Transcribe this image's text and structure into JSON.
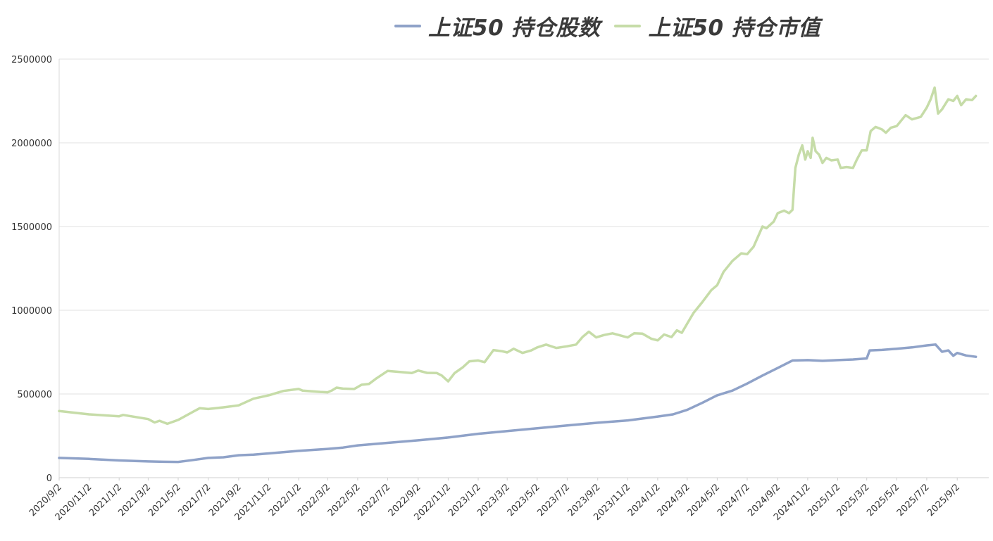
{
  "chart_data": {
    "type": "line",
    "title": "",
    "xlabel": "",
    "ylabel": "",
    "ylim": [
      0,
      2500000
    ],
    "yticks": [
      0,
      500000,
      1000000,
      1500000,
      2000000,
      2500000
    ],
    "ytick_labels": [
      "0",
      "500000",
      "1000000",
      "1500000",
      "2000000",
      "2500000"
    ],
    "xtick_labels": [
      "2020/9/2",
      "2020/11/2",
      "2021/1/2",
      "2021/3/2",
      "2021/5/2",
      "2021/7/2",
      "2021/9/2",
      "2021/11/2",
      "2022/1/2",
      "2022/3/2",
      "2022/5/2",
      "2022/7/2",
      "2022/9/2",
      "2022/11/2",
      "2023/1/2",
      "2023/3/2",
      "2023/5/2",
      "2023/7/2",
      "2023/9/2",
      "2023/11/2",
      "2024/1/2",
      "2024/3/2",
      "2024/5/2",
      "2024/7/2",
      "2024/9/2",
      "2024/11/2",
      "2025/1/2",
      "2025/3/2",
      "2025/5/2",
      "2025/7/2",
      "2025/9/2"
    ],
    "grid": true,
    "legend_position": "top",
    "series": [
      {
        "name": "上证50 持仓股数",
        "color": "#8fa2c8",
        "points": [
          [
            "2020/9/2",
            118000
          ],
          [
            "2020/11/2",
            112000
          ],
          [
            "2021/1/2",
            103000
          ],
          [
            "2021/3/2",
            97000
          ],
          [
            "2021/4/2",
            95000
          ],
          [
            "2021/5/2",
            94000
          ],
          [
            "2021/6/2",
            106000
          ],
          [
            "2021/7/2",
            118000
          ],
          [
            "2021/8/2",
            122000
          ],
          [
            "2021/9/2",
            134000
          ],
          [
            "2021/10/2",
            138000
          ],
          [
            "2021/11/2",
            145000
          ],
          [
            "2022/1/2",
            160000
          ],
          [
            "2022/3/2",
            172000
          ],
          [
            "2022/4/2",
            180000
          ],
          [
            "2022/5/2",
            193000
          ],
          [
            "2022/7/2",
            208000
          ],
          [
            "2022/9/2",
            223000
          ],
          [
            "2022/11/2",
            240000
          ],
          [
            "2023/1/2",
            262000
          ],
          [
            "2023/3/2",
            278000
          ],
          [
            "2023/5/2",
            295000
          ],
          [
            "2023/7/2",
            312000
          ],
          [
            "2023/9/2",
            328000
          ],
          [
            "2023/11/2",
            342000
          ],
          [
            "2024/1/2",
            365000
          ],
          [
            "2024/2/2",
            378000
          ],
          [
            "2024/3/2",
            405000
          ],
          [
            "2024/4/2",
            448000
          ],
          [
            "2024/5/2",
            492000
          ],
          [
            "2024/6/2",
            520000
          ],
          [
            "2024/7/2",
            562000
          ],
          [
            "2024/8/2",
            610000
          ],
          [
            "2024/9/2",
            655000
          ],
          [
            "2024/10/2",
            700000
          ],
          [
            "2024/11/2",
            702000
          ],
          [
            "2024/12/2",
            698000
          ],
          [
            "2025/1/2",
            702000
          ],
          [
            "2025/2/2",
            706000
          ],
          [
            "2025/3/2",
            712000
          ],
          [
            "2025/3/8",
            760000
          ],
          [
            "2025/4/2",
            763000
          ],
          [
            "2025/5/2",
            770000
          ],
          [
            "2025/6/2",
            778000
          ],
          [
            "2025/7/2",
            790000
          ],
          [
            "2025/7/20",
            795000
          ],
          [
            "2025/8/2",
            752000
          ],
          [
            "2025/8/15",
            760000
          ],
          [
            "2025/8/25",
            728000
          ],
          [
            "2025/9/2",
            745000
          ],
          [
            "2025/9/20",
            730000
          ],
          [
            "2025/10/10",
            722000
          ]
        ]
      },
      {
        "name": "上证50 持仓市值",
        "color": "#c6dca8",
        "points": [
          [
            "2020/9/2",
            398000
          ],
          [
            "2020/11/2",
            378000
          ],
          [
            "2021/1/2",
            367000
          ],
          [
            "2021/1/10",
            375000
          ],
          [
            "2021/3/2",
            350000
          ],
          [
            "2021/3/15",
            330000
          ],
          [
            "2021/3/25",
            340000
          ],
          [
            "2021/4/10",
            322000
          ],
          [
            "2021/5/2",
            345000
          ],
          [
            "2021/6/2",
            395000
          ],
          [
            "2021/6/15",
            415000
          ],
          [
            "2021/7/2",
            410000
          ],
          [
            "2021/8/2",
            420000
          ],
          [
            "2021/9/2",
            432000
          ],
          [
            "2021/10/2",
            472000
          ],
          [
            "2021/11/2",
            492000
          ],
          [
            "2021/12/2",
            518000
          ],
          [
            "2022/1/2",
            530000
          ],
          [
            "2022/1/10",
            520000
          ],
          [
            "2022/2/15",
            512000
          ],
          [
            "2022/3/2",
            510000
          ],
          [
            "2022/3/10",
            520000
          ],
          [
            "2022/3/20",
            538000
          ],
          [
            "2022/4/2",
            532000
          ],
          [
            "2022/4/25",
            530000
          ],
          [
            "2022/5/10",
            555000
          ],
          [
            "2022/5/25",
            560000
          ],
          [
            "2022/6/10",
            595000
          ],
          [
            "2022/7/2",
            638000
          ],
          [
            "2022/8/2",
            630000
          ],
          [
            "2022/8/20",
            625000
          ],
          [
            "2022/9/2",
            640000
          ],
          [
            "2022/9/20",
            626000
          ],
          [
            "2022/10/10",
            625000
          ],
          [
            "2022/10/20",
            610000
          ],
          [
            "2022/11/2",
            575000
          ],
          [
            "2022/11/15",
            625000
          ],
          [
            "2022/12/2",
            660000
          ],
          [
            "2022/12/15",
            695000
          ],
          [
            "2023/1/2",
            700000
          ],
          [
            "2023/1/15",
            690000
          ],
          [
            "2023/2/2",
            762000
          ],
          [
            "2023/2/20",
            755000
          ],
          [
            "2023/3/2",
            748000
          ],
          [
            "2023/3/15",
            770000
          ],
          [
            "2023/4/2",
            745000
          ],
          [
            "2023/4/20",
            760000
          ],
          [
            "2023/5/2",
            778000
          ],
          [
            "2023/5/20",
            795000
          ],
          [
            "2023/6/10",
            775000
          ],
          [
            "2023/7/2",
            785000
          ],
          [
            "2023/7/20",
            795000
          ],
          [
            "2023/8/2",
            840000
          ],
          [
            "2023/8/15",
            872000
          ],
          [
            "2023/8/30",
            838000
          ],
          [
            "2023/9/15",
            852000
          ],
          [
            "2023/10/2",
            862000
          ],
          [
            "2023/10/20",
            848000
          ],
          [
            "2023/11/2",
            838000
          ],
          [
            "2023/11/15",
            862000
          ],
          [
            "2023/12/2",
            860000
          ],
          [
            "2023/12/20",
            830000
          ],
          [
            "2024/1/2",
            820000
          ],
          [
            "2024/1/15",
            855000
          ],
          [
            "2024/1/30",
            840000
          ],
          [
            "2024/2/10",
            880000
          ],
          [
            "2024/2/20",
            865000
          ],
          [
            "2024/3/2",
            920000
          ],
          [
            "2024/3/15",
            985000
          ],
          [
            "2024/4/2",
            1050000
          ],
          [
            "2024/4/20",
            1120000
          ],
          [
            "2024/5/2",
            1150000
          ],
          [
            "2024/5/15",
            1230000
          ],
          [
            "2024/6/2",
            1295000
          ],
          [
            "2024/6/20",
            1340000
          ],
          [
            "2024/7/2",
            1335000
          ],
          [
            "2024/7/15",
            1380000
          ],
          [
            "2024/8/2",
            1500000
          ],
          [
            "2024/8/10",
            1490000
          ],
          [
            "2024/8/25",
            1530000
          ],
          [
            "2024/9/2",
            1580000
          ],
          [
            "2024/9/15",
            1595000
          ],
          [
            "2024/9/25",
            1580000
          ],
          [
            "2024/10/2",
            1600000
          ],
          [
            "2024/10/8",
            1850000
          ],
          [
            "2024/10/15",
            1930000
          ],
          [
            "2024/10/22",
            1985000
          ],
          [
            "2024/10/28",
            1900000
          ],
          [
            "2024/11/2",
            1950000
          ],
          [
            "2024/11/8",
            1910000
          ],
          [
            "2024/11/12",
            2030000
          ],
          [
            "2024/11/18",
            1950000
          ],
          [
            "2024/11/25",
            1930000
          ],
          [
            "2024/12/2",
            1880000
          ],
          [
            "2024/12/10",
            1910000
          ],
          [
            "2024/12/20",
            1895000
          ],
          [
            "2025/1/2",
            1900000
          ],
          [
            "2025/1/8",
            1850000
          ],
          [
            "2025/1/20",
            1855000
          ],
          [
            "2025/2/2",
            1850000
          ],
          [
            "2025/2/10",
            1900000
          ],
          [
            "2025/2/20",
            1955000
          ],
          [
            "2025/3/2",
            1955000
          ],
          [
            "2025/3/10",
            2070000
          ],
          [
            "2025/3/20",
            2095000
          ],
          [
            "2025/4/2",
            2080000
          ],
          [
            "2025/4/10",
            2060000
          ],
          [
            "2025/4/20",
            2090000
          ],
          [
            "2025/5/2",
            2100000
          ],
          [
            "2025/5/20",
            2165000
          ],
          [
            "2025/6/2",
            2140000
          ],
          [
            "2025/6/20",
            2155000
          ],
          [
            "2025/7/2",
            2210000
          ],
          [
            "2025/7/10",
            2260000
          ],
          [
            "2025/7/18",
            2330000
          ],
          [
            "2025/7/25",
            2175000
          ],
          [
            "2025/8/2",
            2200000
          ],
          [
            "2025/8/15",
            2260000
          ],
          [
            "2025/8/25",
            2250000
          ],
          [
            "2025/9/2",
            2280000
          ],
          [
            "2025/9/10",
            2225000
          ],
          [
            "2025/9/20",
            2260000
          ],
          [
            "2025/10/2",
            2255000
          ],
          [
            "2025/10/10",
            2280000
          ]
        ]
      }
    ]
  }
}
